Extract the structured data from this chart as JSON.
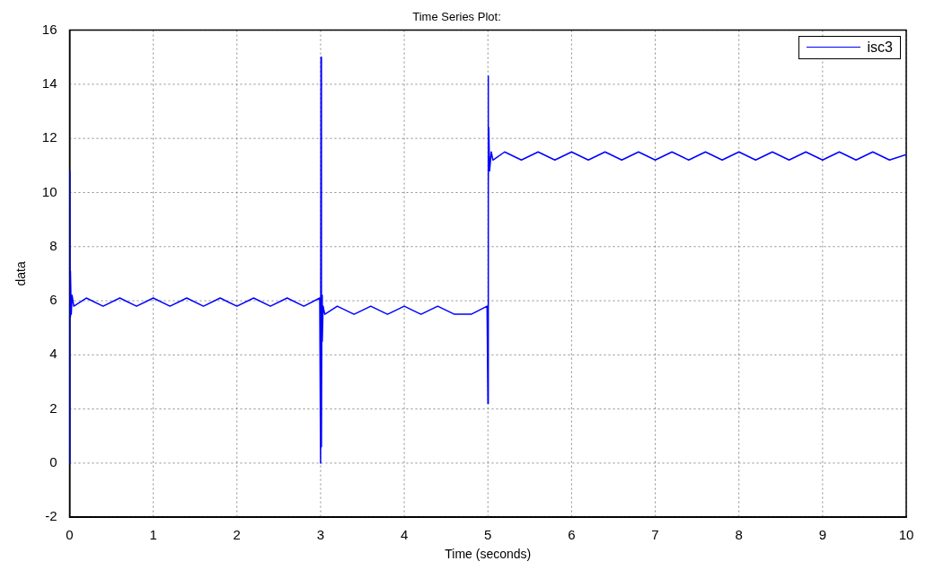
{
  "chart_data": {
    "type": "line",
    "title": "Time Series Plot:",
    "xlabel": "Time (seconds)",
    "ylabel": "data",
    "xlim": [
      0,
      10
    ],
    "xticks": [
      0,
      1,
      2,
      3,
      4,
      5,
      6,
      7,
      8,
      9,
      10
    ],
    "ylim": [
      -2,
      16
    ],
    "yticks": [
      -2,
      0,
      2,
      4,
      6,
      8,
      10,
      12,
      14,
      16
    ],
    "grid": true,
    "legend": "top right",
    "marker": "none",
    "line_style": "solid",
    "series": [
      {
        "name": "isc3",
        "color": "#0000ff",
        "x": [
          0,
          0.003,
          0.006,
          0.01,
          0.02,
          0.03,
          0.05,
          0.2,
          0.4,
          0.6,
          0.8,
          1.0,
          1.2,
          1.4,
          1.6,
          1.8,
          2.0,
          2.2,
          2.4,
          2.6,
          2.8,
          2.99,
          3.0,
          3.005,
          3.01,
          3.015,
          3.02,
          3.03,
          3.05,
          3.2,
          3.4,
          3.6,
          3.8,
          4.0,
          4.2,
          4.4,
          4.6,
          4.8,
          4.99,
          5.0,
          5.003,
          5.006,
          5.01,
          5.02,
          5.04,
          5.06,
          5.2,
          5.4,
          5.6,
          5.8,
          6.0,
          6.2,
          6.4,
          6.6,
          6.8,
          7.0,
          7.2,
          7.4,
          7.6,
          7.8,
          8.0,
          8.2,
          8.4,
          8.6,
          8.8,
          9.0,
          9.2,
          9.4,
          9.6,
          9.8,
          10.0
        ],
        "values": [
          0,
          10.8,
          5.4,
          7.1,
          5.5,
          6.2,
          5.8,
          6.1,
          5.8,
          6.1,
          5.8,
          6.1,
          5.8,
          6.1,
          5.8,
          6.1,
          5.8,
          6.1,
          5.8,
          6.1,
          5.8,
          6.1,
          0,
          15,
          0.6,
          6.2,
          4.5,
          5.8,
          5.5,
          5.8,
          5.5,
          5.8,
          5.5,
          5.8,
          5.5,
          5.8,
          5.5,
          5.5,
          5.8,
          2.2,
          14.3,
          10.3,
          12.4,
          10.8,
          11.5,
          11.2,
          11.5,
          11.2,
          11.5,
          11.2,
          11.5,
          11.2,
          11.5,
          11.2,
          11.5,
          11.2,
          11.5,
          11.2,
          11.5,
          11.2,
          11.5,
          11.2,
          11.5,
          11.2,
          11.5,
          11.2,
          11.5,
          11.2,
          11.5,
          11.2,
          11.4
        ]
      }
    ]
  }
}
